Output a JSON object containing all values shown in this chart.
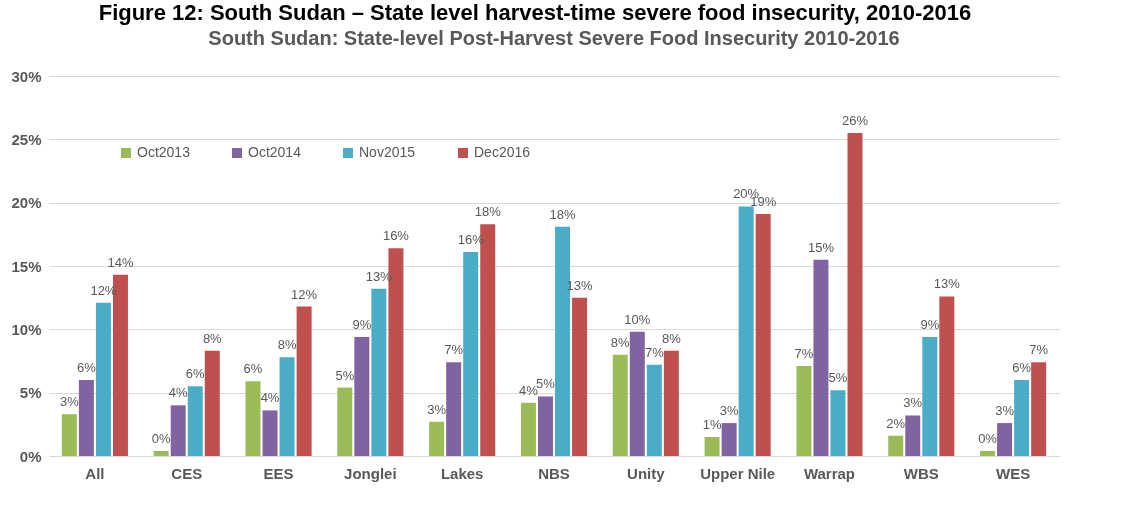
{
  "chart_data": {
    "type": "bar",
    "title": "Figure 12: South Sudan – State level harvest-time severe food insecurity, 2010-2016",
    "subtitle": "South Sudan: State-level Post-Harvest Severe Food Insecurity 2010-2016",
    "categories": [
      "All",
      "CES",
      "EES",
      "Jonglei",
      "Lakes",
      "NBS",
      "Unity",
      "Upper Nile",
      "Warrap",
      "WBS",
      "WES"
    ],
    "series": [
      {
        "name": "Oct2013",
        "color": "#9bbb59",
        "values": [
          3.3,
          0.4,
          5.9,
          5.4,
          2.7,
          4.2,
          8.0,
          1.5,
          7.1,
          1.6,
          0.4
        ],
        "value_labels": [
          "3%",
          "0%",
          "6%",
          "5%",
          "3%",
          "4%",
          "8%",
          "1%",
          "7%",
          "2%",
          "0%"
        ]
      },
      {
        "name": "Oct2014",
        "color": "#8064a2",
        "values": [
          6.0,
          4.0,
          3.6,
          9.4,
          7.4,
          4.7,
          9.8,
          2.6,
          15.5,
          3.2,
          2.6
        ],
        "value_labels": [
          "6%",
          "4%",
          "4%",
          "9%",
          "7%",
          "5%",
          "10%",
          "3%",
          "15%",
          "3%",
          "3%"
        ]
      },
      {
        "name": "Nov2015",
        "color": "#4bacc6",
        "values": [
          12.1,
          5.5,
          7.8,
          13.2,
          16.1,
          18.1,
          7.2,
          19.7,
          5.2,
          9.4,
          6.0
        ],
        "value_labels": [
          "12%",
          "6%",
          "8%",
          "13%",
          "16%",
          "18%",
          "7%",
          "20%",
          "5%",
          "9%",
          "6%"
        ]
      },
      {
        "name": "Dec2016",
        "color": "#c0504d",
        "values": [
          14.3,
          8.3,
          11.8,
          16.4,
          18.3,
          12.5,
          8.3,
          19.1,
          25.5,
          12.6,
          7.4
        ],
        "value_labels": [
          "14%",
          "8%",
          "12%",
          "16%",
          "18%",
          "13%",
          "8%",
          "19%",
          "26%",
          "13%",
          "7%"
        ]
      }
    ],
    "ylim": [
      0,
      30
    ],
    "yticks": [
      {
        "value": 0,
        "label": "0%"
      },
      {
        "value": 5,
        "label": "5%"
      },
      {
        "value": 10,
        "label": "10%"
      },
      {
        "value": 15,
        "label": "15%"
      },
      {
        "value": 20,
        "label": "20%"
      },
      {
        "value": 25,
        "label": "25%"
      },
      {
        "value": 30,
        "label": "30%"
      }
    ],
    "grid": "y",
    "legend": "top left"
  }
}
